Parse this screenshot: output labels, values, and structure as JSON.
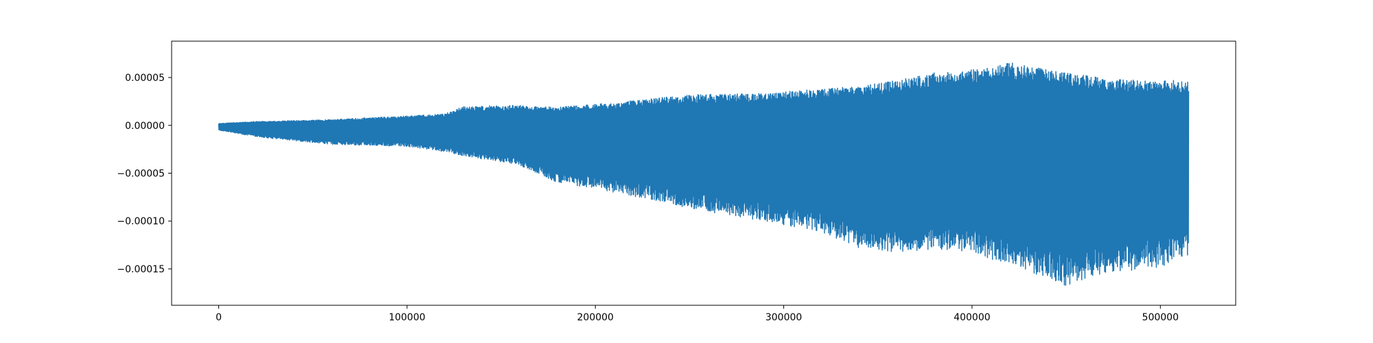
{
  "chart_data": {
    "type": "line",
    "title": "",
    "xlabel": "",
    "ylabel": "",
    "xlim": [
      -25000,
      540000
    ],
    "ylim": [
      -0.000188,
      8.8e-05
    ],
    "grid": false,
    "legend": "none",
    "colors": {
      "series": "#1f77b4",
      "axes": "#000000",
      "background": "#ffffff"
    },
    "x_ticks": [
      0,
      100000,
      200000,
      300000,
      400000,
      500000
    ],
    "x_tick_labels": [
      "0",
      "100000",
      "200000",
      "300000",
      "400000",
      "500000"
    ],
    "y_ticks": [
      5e-05,
      0.0,
      -5e-05,
      -0.0001,
      -0.00015
    ],
    "y_tick_labels": [
      "0.00005",
      "0.00000",
      "−0.00005",
      "−0.00010",
      "−0.00015"
    ],
    "series": [
      {
        "x_start": 0,
        "x_end": 515000,
        "envelope": {
          "x": [
            0,
            20000,
            60000,
            100000,
            120000,
            130000,
            160000,
            180000,
            200000,
            230000,
            250000,
            280000,
            300000,
            320000,
            340000,
            360000,
            380000,
            400000,
            410000,
            420000,
            440000,
            450000,
            460000,
            480000,
            500000,
            515000
          ],
          "upper": [
            2e-06,
            4e-06,
            6e-06,
            1e-05,
            1.2e-05,
            2e-05,
            2.1e-05,
            1.9e-05,
            2.2e-05,
            2.8e-05,
            3.2e-05,
            3.3e-05,
            3.5e-05,
            3.8e-05,
            4.1e-05,
            4.7e-05,
            5.5e-05,
            5.9e-05,
            6e-05,
            6.6e-05,
            5.8e-05,
            5.5e-05,
            5.2e-05,
            4.8e-05,
            4.7e-05,
            4.7e-05
          ],
          "lower": [
            -5e-06,
            -1.2e-05,
            -2e-05,
            -2.2e-05,
            -2.8e-05,
            -3.2e-05,
            -4.2e-05,
            -6e-05,
            -6.6e-05,
            -7.8e-05,
            -8.7e-05,
            -9.7e-05,
            -0.000104,
            -0.000112,
            -0.000128,
            -0.000133,
            -0.00013,
            -0.000132,
            -0.00014,
            -0.000145,
            -0.00016,
            -0.000168,
            -0.00016,
            -0.000153,
            -0.000148,
            -0.000137
          ]
        }
      }
    ]
  }
}
